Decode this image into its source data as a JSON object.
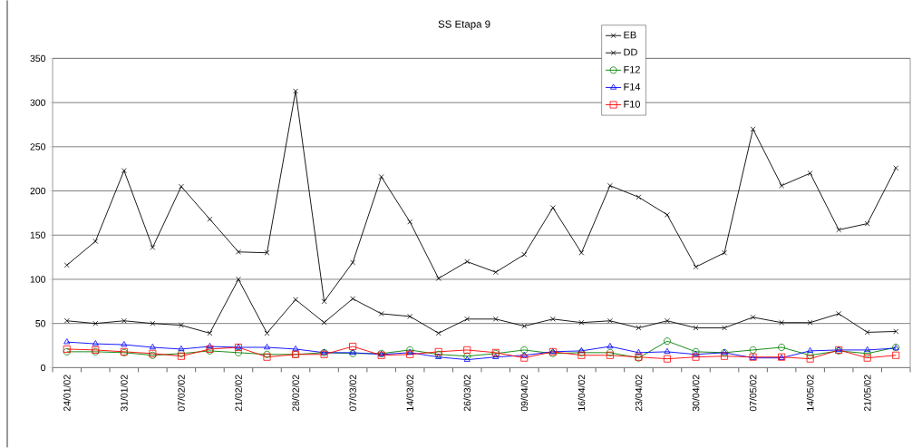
{
  "chart_data": {
    "type": "line",
    "title": "SS   Etapa 9",
    "categories": [
      "24/01/02",
      null,
      "31/01/02",
      null,
      "07/02/02",
      null,
      "21/02/02",
      null,
      "28/02/02",
      null,
      "07/03/02",
      null,
      "14/03/02",
      null,
      "26/03/02",
      null,
      "09/04/02",
      null,
      "16/04/02",
      null,
      "23/04/02",
      null,
      "30/04/02",
      null,
      "07/05/02",
      null,
      "14/05/02",
      null,
      "21/05/02",
      null
    ],
    "series": [
      {
        "name": "EB",
        "color": "#000000",
        "marker": "cross",
        "values": [
          116,
          143,
          223,
          136,
          205,
          168,
          131,
          130,
          313,
          75,
          119,
          216,
          165,
          101,
          120,
          108,
          128,
          181,
          130,
          206,
          193,
          173,
          114,
          130,
          270,
          206,
          220,
          156,
          163,
          226
        ]
      },
      {
        "name": "DD",
        "color": "#000000",
        "marker": "cross",
        "values": [
          53,
          50,
          53,
          50,
          48,
          39,
          100,
          39,
          77,
          51,
          78,
          61,
          58,
          39,
          55,
          55,
          47,
          55,
          51,
          53,
          45,
          53,
          45,
          45,
          57,
          51,
          51,
          61,
          40,
          41
        ]
      },
      {
        "name": "F12",
        "color": "#008000",
        "marker": "circle",
        "values": [
          18,
          18,
          17,
          14,
          16,
          19,
          17,
          15,
          15,
          17,
          16,
          16,
          20,
          15,
          13,
          16,
          20,
          16,
          17,
          17,
          11,
          30,
          18,
          17,
          20,
          23,
          14,
          19,
          16,
          23
        ]
      },
      {
        "name": "F14",
        "color": "#0000ff",
        "marker": "triangle",
        "values": [
          29,
          27,
          26,
          23,
          21,
          24,
          23,
          23,
          21,
          17,
          17,
          15,
          17,
          12,
          9,
          12,
          14,
          18,
          19,
          24,
          17,
          18,
          15,
          17,
          11,
          11,
          19,
          20,
          20,
          22
        ]
      },
      {
        "name": "F10",
        "color": "#ff0000",
        "marker": "square",
        "values": [
          21,
          20,
          18,
          16,
          13,
          21,
          23,
          12,
          15,
          15,
          24,
          14,
          15,
          18,
          20,
          17,
          11,
          18,
          14,
          14,
          12,
          10,
          12,
          13,
          12,
          12,
          10,
          20,
          11,
          14
        ]
      }
    ],
    "ylim": [
      0,
      350
    ],
    "yticks": [
      0,
      50,
      100,
      150,
      200,
      250,
      300,
      350
    ],
    "grid": "y",
    "legend": "top right",
    "line_style": "solid"
  }
}
